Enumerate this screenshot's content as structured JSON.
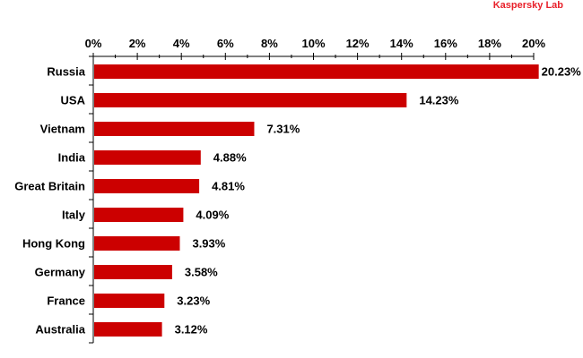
{
  "brand": {
    "name": "Kaspersky Lab",
    "color": "#e8202a"
  },
  "chart_data": {
    "type": "bar",
    "orientation": "horizontal",
    "categories": [
      "Russia",
      "USA",
      "Vietnam",
      "India",
      "Great Britain",
      "Italy",
      "Hong Kong",
      "Germany",
      "France",
      "Australia"
    ],
    "values": [
      20.23,
      14.23,
      7.31,
      4.88,
      4.81,
      4.09,
      3.93,
      3.58,
      3.23,
      3.12
    ],
    "data_labels": [
      "20.23%",
      "14.23%",
      "7.31%",
      "4.88%",
      "4.81%",
      "4.09%",
      "3.93%",
      "3.58%",
      "3.23%",
      "3.12%"
    ],
    "xlim": [
      0,
      20
    ],
    "x_ticks": [
      0,
      2,
      4,
      6,
      8,
      10,
      12,
      14,
      16,
      18,
      20
    ],
    "x_tick_labels": [
      "0%",
      "2%",
      "4%",
      "6%",
      "8%",
      "10%",
      "12%",
      "14%",
      "16%",
      "18%",
      "20%"
    ],
    "x_axis_position": "top",
    "grid": false,
    "bar_color": "#cc0000",
    "title": "",
    "xlabel": "",
    "ylabel": ""
  }
}
